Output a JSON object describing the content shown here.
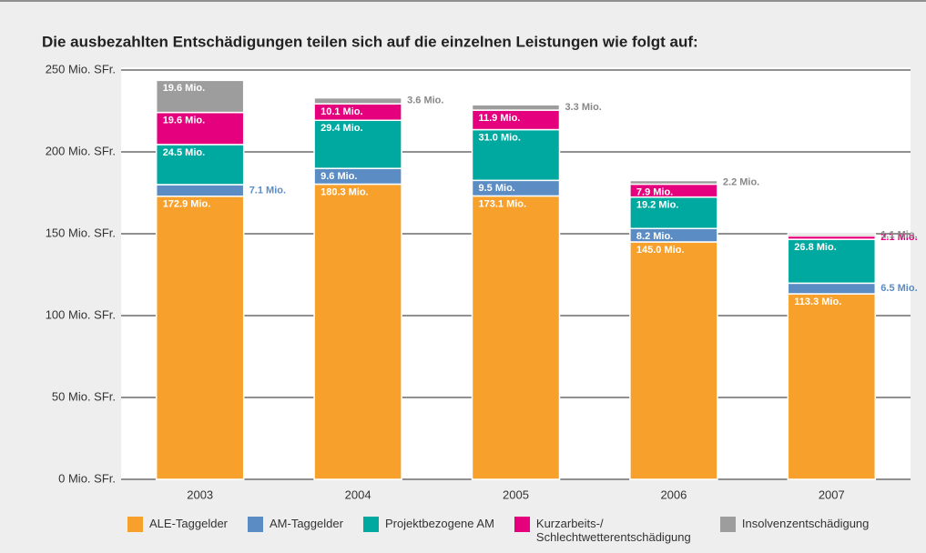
{
  "chart_data": {
    "type": "stacked_bar",
    "title": "Die ausbezahlten Entschädigungen teilen sich auf die einzelnen Leistungen wie folgt auf:",
    "categories": [
      "2003",
      "2004",
      "2005",
      "2006",
      "2007"
    ],
    "series": [
      {
        "name": "ALE-Taggelder",
        "color": "#f7a12c",
        "values": [
          172.9,
          180.3,
          173.1,
          145.0,
          113.3
        ],
        "value_labels": [
          "172.9 Mio.",
          "180.3 Mio.",
          "173.1 Mio.",
          "145.0 Mio.",
          "113.3 Mio."
        ]
      },
      {
        "name": "AM-Taggelder",
        "color": "#5b8cc4",
        "values": [
          7.1,
          9.6,
          9.5,
          8.2,
          6.5
        ],
        "value_labels": [
          "7.1 Mio.",
          "9.6 Mio.",
          "9.5 Mio.",
          "8.2 Mio.",
          "6.5 Mio."
        ]
      },
      {
        "name": "Projektbezogene AM",
        "color": "#00a9a0",
        "values": [
          24.5,
          29.4,
          31.0,
          19.2,
          26.8
        ],
        "value_labels": [
          "24.5 Mio.",
          "29.4 Mio.",
          "31.0 Mio.",
          "19.2 Mio.",
          "26.8 Mio."
        ]
      },
      {
        "name": "Kurzarbeits-/ Schlechtwetterentschädigung",
        "color": "#e5007d",
        "values": [
          19.6,
          10.1,
          11.9,
          7.9,
          2.1
        ],
        "value_labels": [
          "19.6 Mio.",
          "10.1 Mio.",
          "11.9 Mio.",
          "7.9 Mio.",
          "2.1 Mio."
        ]
      },
      {
        "name": "Insolvenzentschädigung",
        "color": "#9d9d9d",
        "values": [
          19.6,
          3.6,
          3.3,
          2.2,
          1.1
        ],
        "value_labels": [
          "19.6 Mio.",
          "3.6 Mio.",
          "3.3 Mio.",
          "2.2 Mio.",
          "1.1 Mio."
        ]
      }
    ],
    "ylim": [
      0,
      250
    ],
    "yticks": [
      {
        "value": 0,
        "label": "0 Mio. SFr."
      },
      {
        "value": 50,
        "label": "50 Mio. SFr."
      },
      {
        "value": 100,
        "label": "100 Mio. SFr."
      },
      {
        "value": 150,
        "label": "150 Mio. SFr."
      },
      {
        "value": 200,
        "label": "200 Mio. SFr."
      },
      {
        "value": 250,
        "label": "250 Mio. SFr."
      }
    ],
    "grid": true
  }
}
